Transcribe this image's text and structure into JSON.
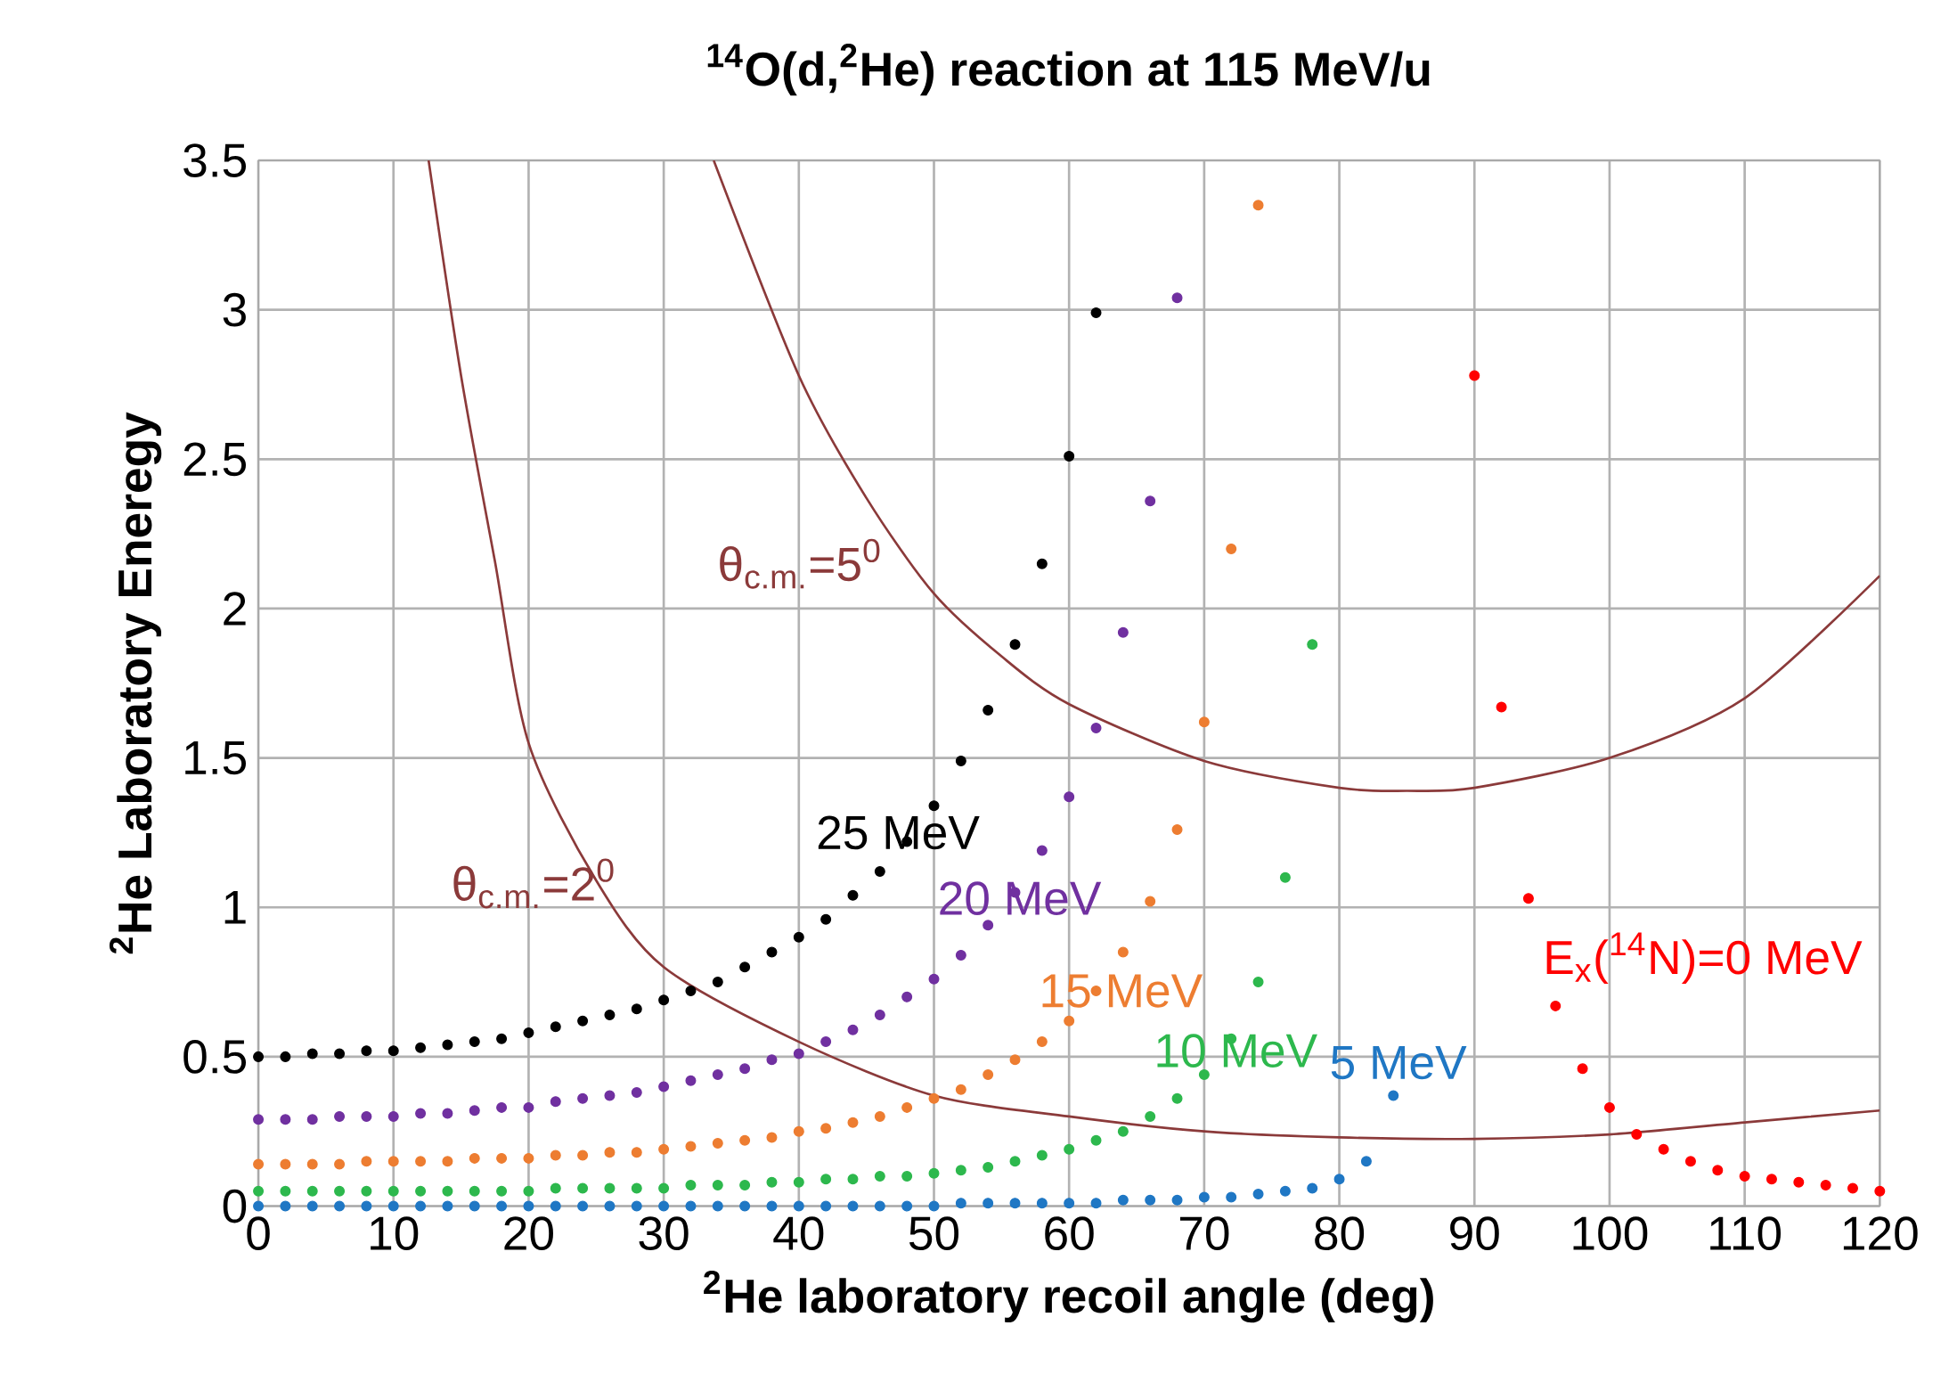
{
  "chart_data": {
    "type": "scatter",
    "title": "$^{14}$O(d,$^{2}$He)  reaction at 115 MeV/u",
    "xlabel": "$^{2}$He laboratory recoil angle (deg)",
    "ylabel": "$^{2}$He   Laboratory Eneregy",
    "xlim": [
      0,
      120
    ],
    "ylim": [
      0,
      3.5
    ],
    "xticks": [
      0,
      10,
      20,
      30,
      40,
      50,
      60,
      70,
      80,
      90,
      100,
      110,
      120
    ],
    "yticks": [
      0,
      0.5,
      1,
      1.5,
      2,
      2.5,
      3,
      3.5
    ],
    "grid": true,
    "marker": "circle",
    "series": [
      {
        "name": "25 MeV",
        "color": "#000000",
        "x": [
          0,
          2,
          4,
          6,
          8,
          10,
          12,
          14,
          16,
          18,
          20,
          22,
          24,
          26,
          28,
          30,
          32,
          34,
          36,
          38,
          40,
          42,
          44,
          46,
          48,
          50,
          52,
          54,
          56,
          58,
          60,
          62
        ],
        "values": [
          0.5,
          0.5,
          0.51,
          0.51,
          0.52,
          0.52,
          0.53,
          0.54,
          0.55,
          0.56,
          0.58,
          0.6,
          0.62,
          0.64,
          0.66,
          0.69,
          0.72,
          0.75,
          0.8,
          0.85,
          0.9,
          0.96,
          1.04,
          1.12,
          1.22,
          1.34,
          1.49,
          1.66,
          1.88,
          2.15,
          2.51,
          2.99
        ]
      },
      {
        "name": "20 MeV",
        "color": "#7030a0",
        "x": [
          0,
          2,
          4,
          6,
          8,
          10,
          12,
          14,
          16,
          18,
          20,
          22,
          24,
          26,
          28,
          30,
          32,
          34,
          36,
          38,
          40,
          42,
          44,
          46,
          48,
          50,
          52,
          54,
          56,
          58,
          60,
          62,
          64,
          66,
          68
        ],
        "values": [
          0.29,
          0.29,
          0.29,
          0.3,
          0.3,
          0.3,
          0.31,
          0.31,
          0.32,
          0.33,
          0.33,
          0.35,
          0.36,
          0.37,
          0.38,
          0.4,
          0.42,
          0.44,
          0.46,
          0.49,
          0.51,
          0.55,
          0.59,
          0.64,
          0.7,
          0.76,
          0.84,
          0.94,
          1.05,
          1.19,
          1.37,
          1.6,
          1.92,
          2.36,
          3.04
        ]
      },
      {
        "name": "15 MeV",
        "color": "#ed7d31",
        "x": [
          0,
          2,
          4,
          6,
          8,
          10,
          12,
          14,
          16,
          18,
          20,
          22,
          24,
          26,
          28,
          30,
          32,
          34,
          36,
          38,
          40,
          42,
          44,
          46,
          48,
          50,
          52,
          54,
          56,
          58,
          60,
          62,
          64,
          66,
          68,
          70,
          72,
          74
        ],
        "values": [
          0.14,
          0.14,
          0.14,
          0.14,
          0.15,
          0.15,
          0.15,
          0.15,
          0.16,
          0.16,
          0.16,
          0.17,
          0.17,
          0.18,
          0.18,
          0.19,
          0.2,
          0.21,
          0.22,
          0.23,
          0.25,
          0.26,
          0.28,
          0.3,
          0.33,
          0.36,
          0.39,
          0.44,
          0.49,
          0.55,
          0.62,
          0.72,
          0.85,
          1.02,
          1.26,
          1.62,
          2.2,
          3.35
        ]
      },
      {
        "name": "10 MeV",
        "color": "#2db84d",
        "x": [
          0,
          2,
          4,
          6,
          8,
          10,
          12,
          14,
          16,
          18,
          20,
          22,
          24,
          26,
          28,
          30,
          32,
          34,
          36,
          38,
          40,
          42,
          44,
          46,
          48,
          50,
          52,
          54,
          56,
          58,
          60,
          62,
          64,
          66,
          68,
          70,
          72,
          74,
          76,
          78
        ],
        "values": [
          0.05,
          0.05,
          0.05,
          0.05,
          0.05,
          0.05,
          0.05,
          0.05,
          0.05,
          0.05,
          0.05,
          0.06,
          0.06,
          0.06,
          0.06,
          0.06,
          0.07,
          0.07,
          0.07,
          0.08,
          0.08,
          0.09,
          0.09,
          0.1,
          0.1,
          0.11,
          0.12,
          0.13,
          0.15,
          0.17,
          0.19,
          0.22,
          0.25,
          0.3,
          0.36,
          0.44,
          0.56,
          0.75,
          1.1,
          1.88
        ]
      },
      {
        "name": "5 MeV",
        "color": "#1f77c4",
        "x": [
          0,
          2,
          4,
          6,
          8,
          10,
          12,
          14,
          16,
          18,
          20,
          22,
          24,
          26,
          28,
          30,
          32,
          34,
          36,
          38,
          40,
          42,
          44,
          46,
          48,
          50,
          52,
          54,
          56,
          58,
          60,
          62,
          64,
          66,
          68,
          70,
          72,
          74,
          76,
          78,
          80,
          82,
          84
        ],
        "values": [
          0.0,
          0.0,
          0.0,
          0.0,
          0.0,
          0.0,
          0.0,
          0.0,
          0.0,
          0.0,
          0.0,
          0.0,
          0.0,
          0.0,
          0.0,
          0.0,
          0.0,
          0.0,
          0.0,
          0.0,
          0.0,
          0.0,
          0.0,
          0.0,
          0.0,
          0.0,
          0.01,
          0.01,
          0.01,
          0.01,
          0.01,
          0.01,
          0.02,
          0.02,
          0.02,
          0.03,
          0.03,
          0.04,
          0.05,
          0.06,
          0.09,
          0.15,
          0.37
        ]
      },
      {
        "name": "E$_{x}$($^{14}$N)=0 MeV",
        "color": "#ff0000",
        "x": [
          90,
          92,
          94,
          96,
          98,
          100,
          102,
          104,
          106,
          108,
          110,
          112,
          114,
          116,
          118,
          120
        ],
        "values": [
          2.78,
          1.67,
          1.03,
          0.67,
          0.46,
          0.33,
          0.24,
          0.19,
          0.15,
          0.12,
          0.1,
          0.09,
          0.08,
          0.07,
          0.06,
          0.05
        ]
      },
      {
        "name": "θ$_{c.m.}$=2$^{0}$",
        "type": "line",
        "marker": "none",
        "color": "#8b3a3a",
        "x": [
          12.6,
          15,
          17.5,
          20,
          25,
          30,
          40,
          50,
          60,
          70,
          80,
          90,
          100,
          110,
          120
        ],
        "values": [
          3.5,
          2.78,
          2.16,
          1.55,
          1.09,
          0.8,
          0.55,
          0.37,
          0.3,
          0.25,
          0.23,
          0.225,
          0.24,
          0.28,
          0.32
        ]
      },
      {
        "name": "θ$_{c.m.}$=5$^{0}$",
        "type": "line",
        "marker": "none",
        "color": "#8b3a3a",
        "x": [
          33.7,
          40,
          45,
          50,
          55,
          60,
          70,
          80,
          85,
          90,
          100,
          110,
          120
        ],
        "values": [
          3.5,
          2.78,
          2.37,
          2.05,
          1.84,
          1.68,
          1.49,
          1.4,
          1.39,
          1.4,
          1.5,
          1.7,
          2.11
        ]
      }
    ]
  }
}
